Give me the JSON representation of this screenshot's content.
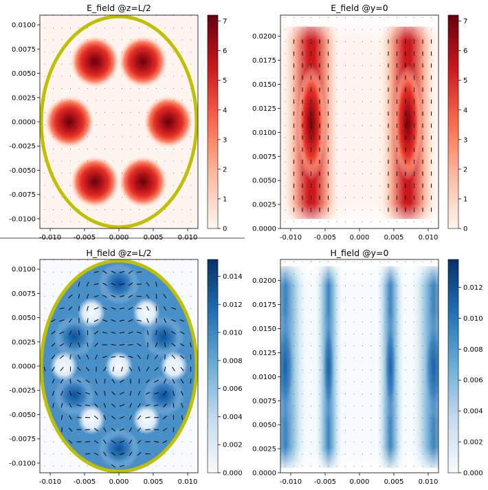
{
  "colors": {
    "ellipse": "#c0bf00",
    "divider": "#888888"
  },
  "chart_data": [
    {
      "type": "heatmap",
      "title": "E_field @z=L/2",
      "colormap": "Reds",
      "xlim": [
        -0.0115,
        0.0115
      ],
      "ylim": [
        -0.011,
        0.011
      ],
      "xticks": [
        "-0.010",
        "-0.005",
        "0.000",
        "0.005",
        "0.010"
      ],
      "yticks": [
        "0.0100",
        "0.0075",
        "0.0050",
        "0.0025",
        "0.0000",
        "-0.0025",
        "-0.0050",
        "-0.0075",
        "-0.0100"
      ],
      "colorbar": {
        "min": 0,
        "max": 7.2,
        "ticks": [
          "0",
          "1",
          "2",
          "3",
          "4",
          "5",
          "6",
          "7"
        ]
      },
      "boundary": "ellipse",
      "hotspots": [
        {
          "x": -0.0035,
          "y": 0.0062,
          "value": 6.9
        },
        {
          "x": 0.0035,
          "y": 0.0062,
          "value": 6.9
        },
        {
          "x": -0.0072,
          "y": 0.0,
          "value": 7.0
        },
        {
          "x": 0.0072,
          "y": 0.0,
          "value": 7.0
        },
        {
          "x": -0.0035,
          "y": -0.0062,
          "value": 6.9
        },
        {
          "x": 0.0035,
          "y": -0.0062,
          "value": 6.9
        }
      ],
      "quiver": "sparse dots"
    },
    {
      "type": "heatmap",
      "title": "E_field @y=0",
      "colormap": "Reds",
      "xlim": [
        -0.0115,
        0.0115
      ],
      "ylim": [
        0.0,
        0.0222
      ],
      "xticks": [
        "-0.010",
        "-0.005",
        "0.000",
        "0.005",
        "0.010"
      ],
      "yticks": [
        "0.0200",
        "0.0175",
        "0.0150",
        "0.0125",
        "0.0100",
        "0.0075",
        "0.0050",
        "0.0025",
        "0.0000"
      ],
      "colorbar": {
        "min": 0,
        "max": 7.2,
        "ticks": [
          "0",
          "1",
          "2",
          "3",
          "4",
          "5",
          "6",
          "7"
        ]
      },
      "columns": [
        {
          "x": -0.007,
          "y_center": 0.011,
          "value": 7.0
        },
        {
          "x": 0.007,
          "y_center": 0.011,
          "value": 7.0
        }
      ],
      "quiver": "vertical arrows in lobes"
    },
    {
      "type": "heatmap",
      "title": "H_field @z=L/2",
      "colormap": "Blues",
      "xlim": [
        -0.0115,
        0.0115
      ],
      "ylim": [
        -0.011,
        0.011
      ],
      "xticks": [
        "-0.010",
        "-0.005",
        "0.000",
        "0.005",
        "0.010"
      ],
      "yticks": [
        "0.0100",
        "0.0075",
        "0.0050",
        "0.0025",
        "0.0000",
        "-0.0025",
        "-0.0050",
        "-0.0075",
        "-0.0100"
      ],
      "colorbar": {
        "min": 0,
        "max": 0.0152,
        "ticks": [
          "0.000",
          "0.002",
          "0.004",
          "0.006",
          "0.008",
          "0.010",
          "0.012",
          "0.014"
        ]
      },
      "boundary": "ellipse",
      "quiver": "circulating arrows"
    },
    {
      "type": "heatmap",
      "title": "H_field @y=0",
      "colormap": "Blues",
      "xlim": [
        -0.0115,
        0.0115
      ],
      "ylim": [
        0.0,
        0.0222
      ],
      "xticks": [
        "-0.010",
        "-0.005",
        "0.000",
        "0.005",
        "0.010"
      ],
      "yticks": [
        "0.0200",
        "0.0175",
        "0.0150",
        "0.0125",
        "0.0100",
        "0.0075",
        "0.0050",
        "0.0025",
        "0.0000"
      ],
      "colorbar": {
        "min": 0,
        "max": 0.0138,
        "ticks": [
          "0.000",
          "0.002",
          "0.004",
          "0.006",
          "0.008",
          "0.010",
          "0.012"
        ]
      },
      "columns": [
        {
          "x": -0.0108,
          "value": 0.0135
        },
        {
          "x": -0.0045,
          "value": 0.0085
        },
        {
          "x": 0.0045,
          "value": 0.0085
        },
        {
          "x": 0.0108,
          "value": 0.0135
        }
      ],
      "quiver": "sparse dots"
    }
  ]
}
